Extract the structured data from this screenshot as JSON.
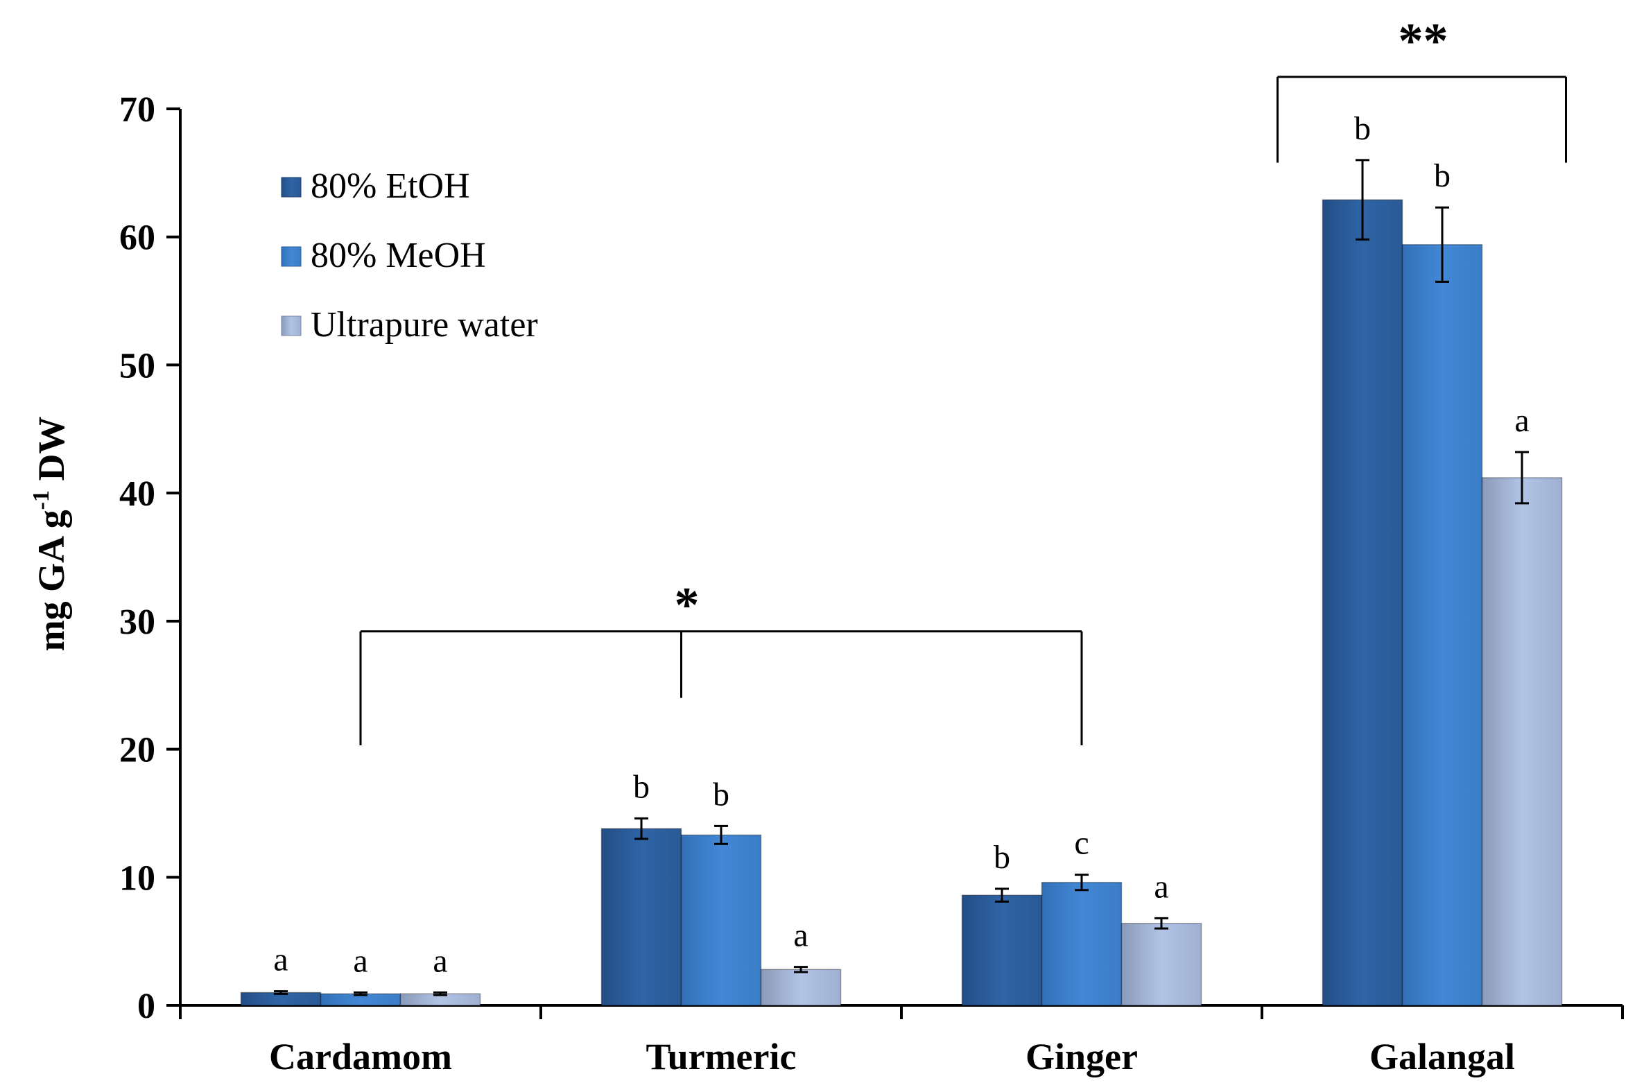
{
  "chart_data": {
    "type": "bar",
    "title": "",
    "xlabel": "",
    "ylabel": "mg GA g-1 DW",
    "ylabel_parts": {
      "main": "mg GA g",
      "sup": "-1",
      "tail": " DW"
    },
    "ylim": [
      0,
      70
    ],
    "yticks": [
      0,
      10,
      20,
      30,
      40,
      50,
      60,
      70
    ],
    "grid": false,
    "legend_position": "top-left",
    "categories": [
      "Cardamom",
      "Turmeric",
      "Ginger",
      "Galangal"
    ],
    "series": [
      {
        "name": "80% EtOH",
        "color": "#2e61a0",
        "values": [
          1.0,
          13.8,
          8.6,
          62.9
        ],
        "errors": [
          0.1,
          0.8,
          0.5,
          3.1
        ],
        "letters": [
          "a",
          "b",
          "b",
          "b"
        ]
      },
      {
        "name": "80% MeOH",
        "color": "#3f82cf",
        "values": [
          0.9,
          13.3,
          9.6,
          59.4
        ],
        "errors": [
          0.1,
          0.7,
          0.6,
          2.9
        ],
        "letters": [
          "a",
          "b",
          "c",
          "b"
        ]
      },
      {
        "name": "Ultrapure water",
        "color": "#a8bce0",
        "values": [
          0.9,
          2.8,
          6.4,
          41.2
        ],
        "errors": [
          0.1,
          0.2,
          0.4,
          2.0
        ],
        "letters": [
          "a",
          "a",
          "a",
          "a"
        ]
      }
    ],
    "annotations": [
      {
        "label": "*",
        "categories": [
          "Cardamom",
          "Turmeric",
          "Ginger"
        ],
        "level": 29.2
      },
      {
        "label": "**",
        "categories": [
          "Galangal"
        ],
        "level": 72.5
      }
    ]
  }
}
